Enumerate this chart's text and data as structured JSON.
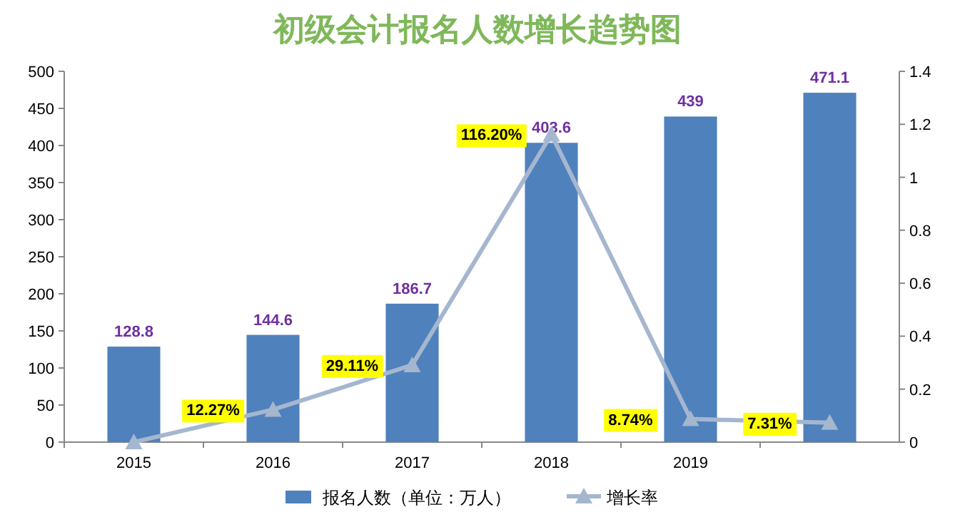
{
  "chart_data": {
    "type": "bar",
    "title": "初级会计报名人数增长趋势图",
    "categories": [
      "2015",
      "2016",
      "2017",
      "2018",
      "2019",
      null
    ],
    "series": [
      {
        "name": "报名人数（单位：万人）",
        "color": "#4f81bd",
        "values": [
          128.8,
          144.6,
          186.7,
          403.6,
          439,
          471.1
        ],
        "value_labels": [
          "128.8",
          "144.6",
          "186.7",
          "403.6",
          "439",
          "471.1"
        ]
      },
      {
        "name": "增长率",
        "type": "line",
        "axis": "y2",
        "color": "#a5b6cf",
        "marker": "triangle",
        "values": [
          0,
          0.1227,
          0.2911,
          1.162,
          0.0874,
          0.0731
        ],
        "value_labels": [
          null,
          "12.27%",
          "29.11%",
          "116.20%",
          "8.74%",
          "7.31%"
        ]
      }
    ],
    "ylim": [
      0,
      500
    ],
    "yticks": [
      0,
      50,
      100,
      150,
      200,
      250,
      300,
      350,
      400,
      450,
      500
    ],
    "y2lim": [
      0,
      1.4
    ],
    "y2ticks": [
      0,
      0.2,
      0.4,
      0.6,
      0.8,
      1,
      1.2,
      1.4
    ],
    "grid": false,
    "legend": "bottom"
  }
}
